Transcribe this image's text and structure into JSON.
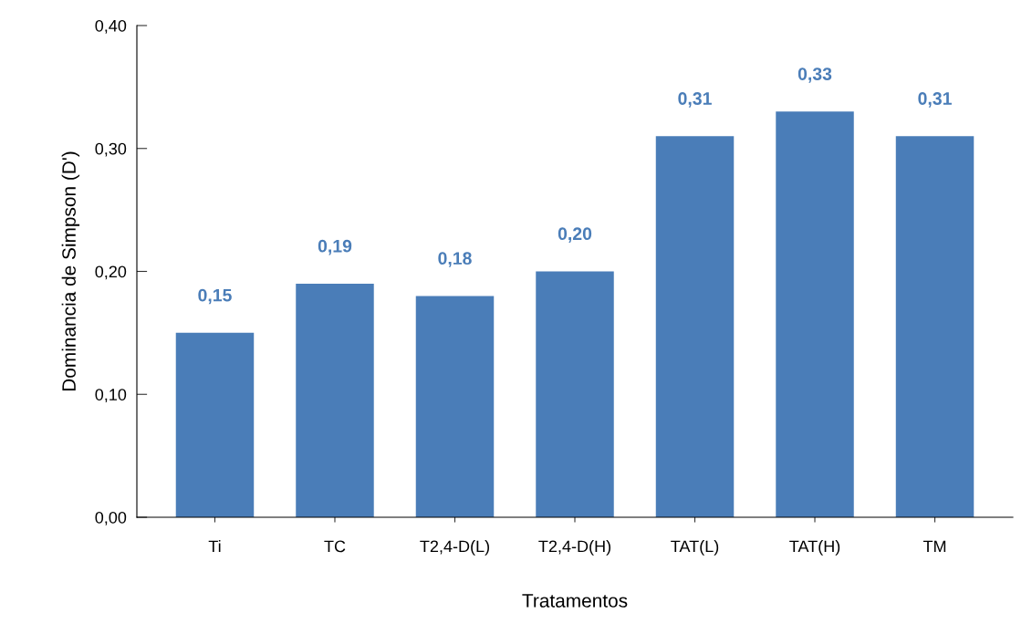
{
  "chart_data": {
    "type": "bar",
    "xlabel": "Tratamentos",
    "ylabel": "Dominancia de Simpson (D')",
    "categories": [
      "Ti",
      "TC",
      "T2,4-D(L)",
      "T2,4-D(H)",
      "TAT(L)",
      "TAT(H)",
      "TM"
    ],
    "values": [
      0.15,
      0.19,
      0.18,
      0.2,
      0.31,
      0.33,
      0.31
    ],
    "value_labels": [
      "0,15",
      "0,19",
      "0,18",
      "0,20",
      "0,31",
      "0,33",
      "0,31"
    ],
    "color": "#4a7db8",
    "ylim": [
      0,
      0.4
    ],
    "yticks": [
      {
        "value": 0,
        "label": "0,00"
      },
      {
        "value": 0.1,
        "label": "0,10"
      },
      {
        "value": 0.2,
        "label": "0,20"
      },
      {
        "value": 0.3,
        "label": "0,30"
      },
      {
        "value": 0.4,
        "label": "0,40"
      }
    ],
    "grid": false,
    "legend": false
  }
}
